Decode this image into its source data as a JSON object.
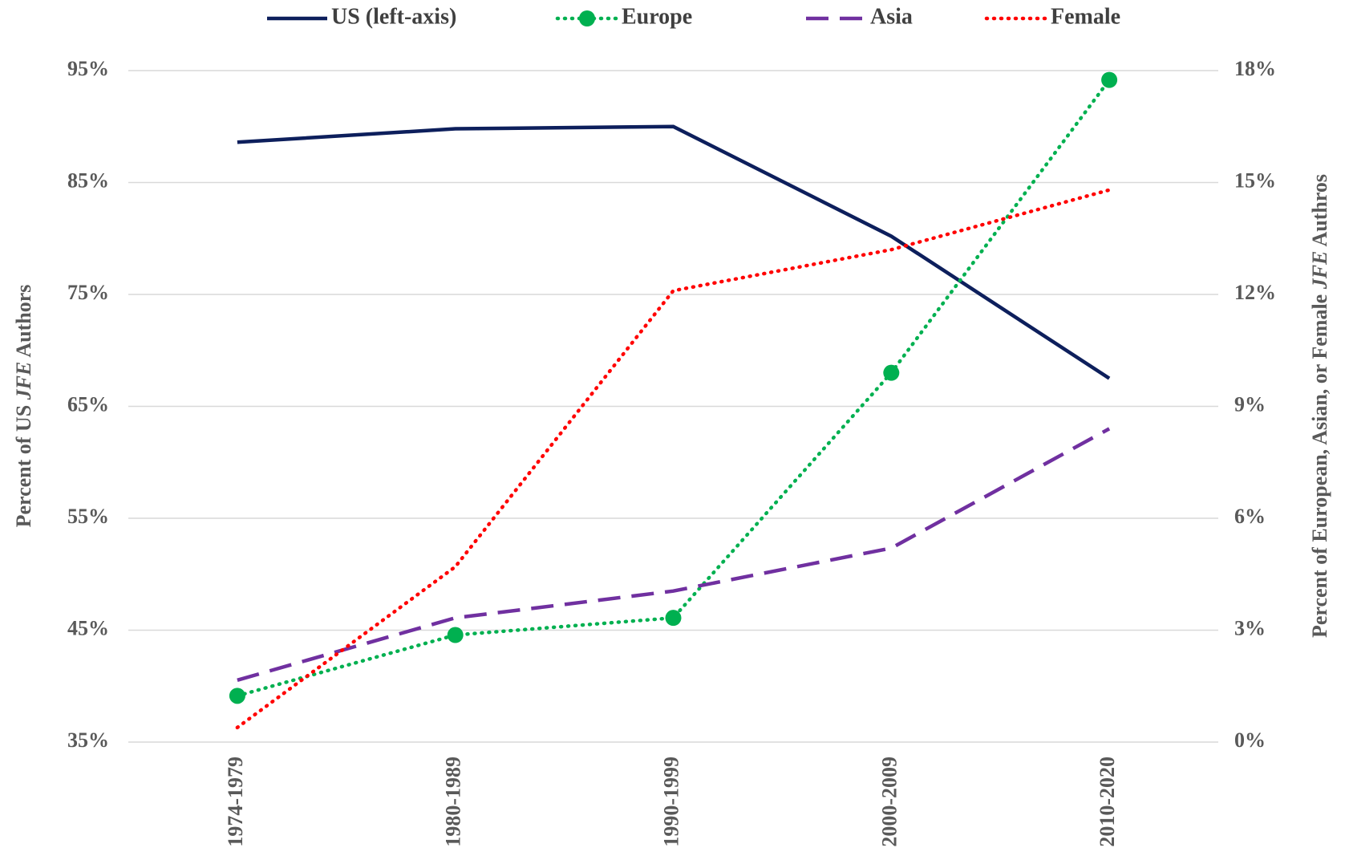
{
  "chart_data": {
    "type": "line",
    "y_label": [
      "Percent of US ",
      "JFE",
      " Authors"
    ],
    "y2_label": [
      "Percent of European, Asian, or Female ",
      "JFE",
      " Authros"
    ],
    "categories": [
      "1974-1979",
      "1980-1989",
      "1990-1999",
      "2000-2009",
      "2010-2020"
    ],
    "series": [
      {
        "name": "US (left-axis)",
        "color": "#0d1f5c",
        "style": "solid",
        "values": [
          88.6,
          89.8,
          90.0,
          80.2,
          67.5
        ]
      },
      {
        "name": "Europe",
        "color": "#00b050",
        "style": "dotted",
        "marker": "circle",
        "axis": "y2",
        "values": [
          1.24,
          2.87,
          3.33,
          9.9,
          17.75
        ]
      },
      {
        "name": "Asia",
        "color": "#7030a0",
        "style": "dashed",
        "axis": "y2",
        "values": [
          1.66,
          3.33,
          4.05,
          5.2,
          8.4
        ]
      },
      {
        "name": "Female",
        "color": "#ff0000",
        "style": "dotted",
        "axis": "y2",
        "values": [
          0.39,
          4.7,
          12.1,
          13.2,
          14.8
        ]
      }
    ],
    "ylim": [
      35,
      95
    ],
    "yticks": [
      {
        "value": 35,
        "label": "35%"
      },
      {
        "value": 45,
        "label": "45%"
      },
      {
        "value": 55,
        "label": "55%"
      },
      {
        "value": 65,
        "label": "65%"
      },
      {
        "value": 75,
        "label": "75%"
      },
      {
        "value": 85,
        "label": "85%"
      },
      {
        "value": 95,
        "label": "95%"
      }
    ],
    "y2lim": [
      0,
      18
    ],
    "y2ticks": [
      {
        "value": 0,
        "label": "0%"
      },
      {
        "value": 3,
        "label": "3%"
      },
      {
        "value": 6,
        "label": "6%"
      },
      {
        "value": 9,
        "label": "9%"
      },
      {
        "value": 12,
        "label": "12%"
      },
      {
        "value": 15,
        "label": "15%"
      },
      {
        "value": 18,
        "label": "18%"
      }
    ],
    "grid": true,
    "legend": "top"
  }
}
